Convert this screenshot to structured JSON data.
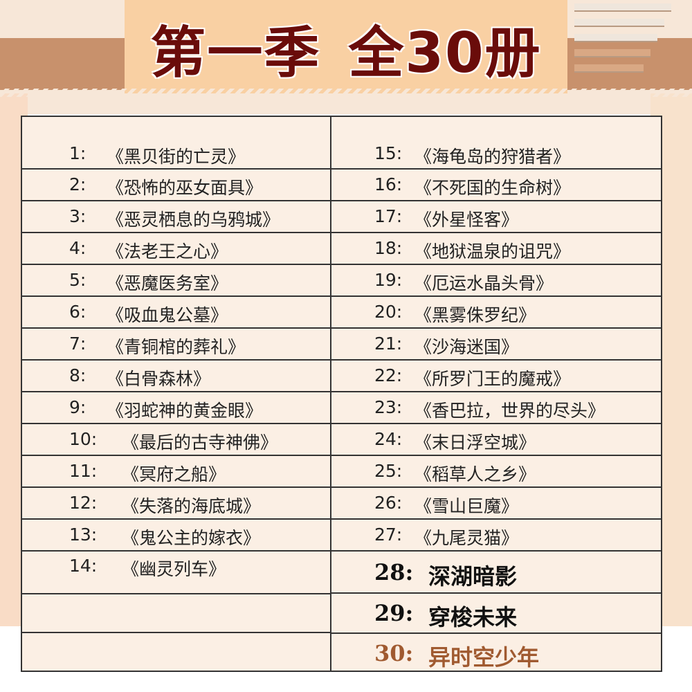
{
  "header": {
    "title_part1": "第一季",
    "title_part2": "全30册"
  },
  "colors": {
    "title": "#6a0c0a",
    "accent_item": "#a05a30",
    "band": "#c8916c",
    "title_box": "#f9d0a3"
  },
  "left_column": [
    {
      "num": "1:",
      "title": "《黑贝街的亡灵》"
    },
    {
      "num": "2:",
      "title": "《恐怖的巫女面具》"
    },
    {
      "num": "3:",
      "title": "《恶灵栖息的乌鸦城》"
    },
    {
      "num": "4:",
      "title": "《法老王之心》"
    },
    {
      "num": "5:",
      "title": "《恶魔医务室》"
    },
    {
      "num": "6:",
      "title": "《吸血鬼公墓》"
    },
    {
      "num": "7:",
      "title": "《青铜棺的葬礼》"
    },
    {
      "num": "8:",
      "title": "《白骨森林》"
    },
    {
      "num": "9:",
      "title": "《羽蛇神的黄金眼》"
    },
    {
      "num": "10:",
      "title": "《最后的古寺神佛》"
    },
    {
      "num": "11:",
      "title": "《冥府之船》"
    },
    {
      "num": "12:",
      "title": "《失落的海底城》"
    },
    {
      "num": "13:",
      "title": "《鬼公主的嫁衣》"
    },
    {
      "num": "14:",
      "title": "《幽灵列车》"
    }
  ],
  "right_column": [
    {
      "num": "15:",
      "title": "《海龟岛的狩猎者》"
    },
    {
      "num": "16:",
      "title": "《不死国的生命树》"
    },
    {
      "num": "17:",
      "title": "《外星怪客》"
    },
    {
      "num": "18:",
      "title": "《地狱温泉的诅咒》"
    },
    {
      "num": "19:",
      "title": "《厄运水晶头骨》"
    },
    {
      "num": "20:",
      "title": "《黑雾侏罗纪》"
    },
    {
      "num": "21:",
      "title": "《沙海迷国》"
    },
    {
      "num": "22:",
      "title": "《所罗门王的魔戒》"
    },
    {
      "num": "23:",
      "title": "《香巴拉，世界的尽头》"
    },
    {
      "num": "24:",
      "title": "《末日浮空城》"
    },
    {
      "num": "25:",
      "title": "《稻草人之乡》"
    },
    {
      "num": "26:",
      "title": "《雪山巨魔》"
    },
    {
      "num": "27:",
      "title": "《九尾灵猫》"
    },
    {
      "num": "28:",
      "title": "深湖暗影"
    },
    {
      "num": "29:",
      "title": "穿梭未来"
    },
    {
      "num": "30:",
      "title": "异时空少年"
    }
  ]
}
